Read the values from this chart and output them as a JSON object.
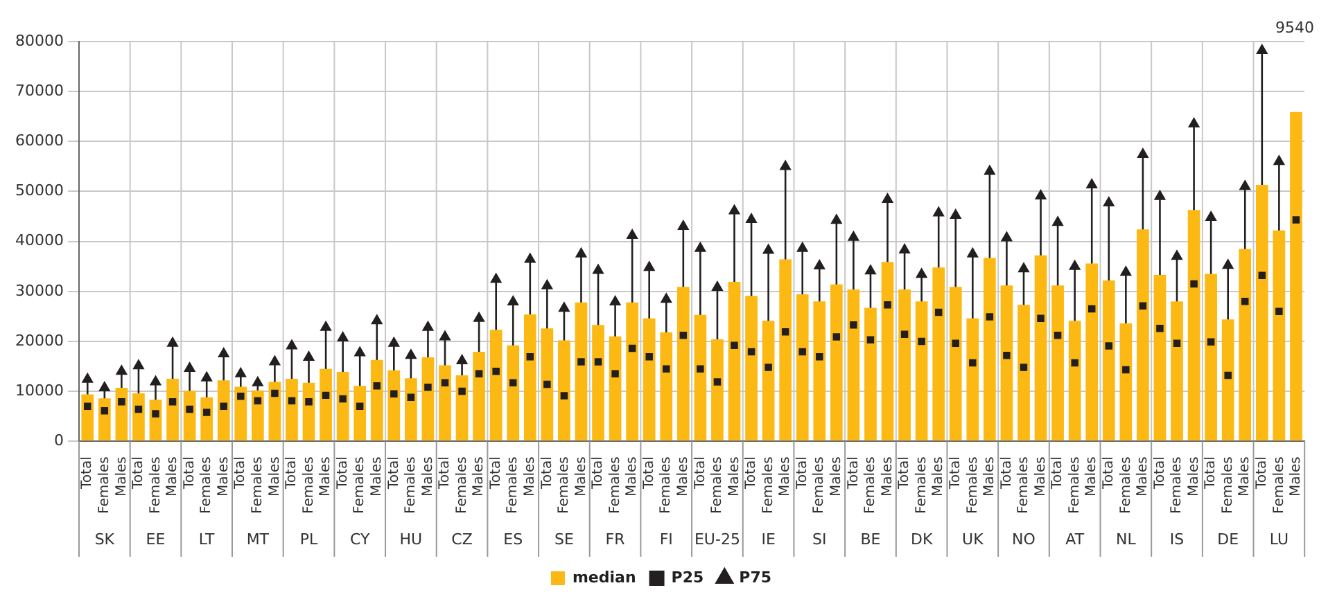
{
  "chart_data": {
    "type": "bar",
    "categories": [
      "Total",
      "Females",
      "Males",
      "Total",
      "Females",
      "Males",
      "Total",
      "Females",
      "Males",
      "Total",
      "Females",
      "Males",
      "Total",
      "Females",
      "Males",
      "Total",
      "Females",
      "Males",
      "Total",
      "Females",
      "Males",
      "Total",
      "Females",
      "Males",
      "Total",
      "Females",
      "Males",
      "Total",
      "Females",
      "Males",
      "Total",
      "Females",
      "Males",
      "Total",
      "Females",
      "Males",
      "Total",
      "Females",
      "Males",
      "Total",
      "Females",
      "Males",
      "Total",
      "Females",
      "Males",
      "Total",
      "Females",
      "Males",
      "Total",
      "Females",
      "Males",
      "Total",
      "Females",
      "Males",
      "Total",
      "Females",
      "Males",
      "Total",
      "Females",
      "Males",
      "Total",
      "Females",
      "Males",
      "Total",
      "Females",
      "Males",
      "Total",
      "Females",
      "Males",
      "Total",
      "Females",
      "Males"
    ],
    "series": [
      {
        "name": "median",
        "color": "#fdb913",
        "values": [
          9400,
          8600,
          10700,
          9600,
          8300,
          12500,
          10100,
          8800,
          12200,
          10900,
          10200,
          11900,
          12500,
          11700,
          14500,
          13900,
          11100,
          16300,
          14200,
          12600,
          16800,
          15200,
          13200,
          17900,
          22300,
          19200,
          25400,
          22600,
          20200,
          27800,
          23300,
          21000,
          27800,
          24600,
          21800,
          30900,
          25300,
          20400,
          31900,
          29100,
          24100,
          36400,
          29400,
          28000,
          31400,
          30400,
          26700,
          35900,
          30400,
          28000,
          34800,
          30900,
          24600,
          36700,
          31200,
          27300,
          37200,
          31200,
          24100,
          35600,
          32200,
          23600,
          42400,
          33300,
          28000,
          46300,
          33500,
          24400,
          38500,
          51300,
          42200,
          65900
        ]
      },
      {
        "name": "P25",
        "type": "scatter",
        "marker": "square",
        "color": "#231f20",
        "values": [
          7000,
          6100,
          7900,
          6400,
          5500,
          7900,
          6400,
          5800,
          7000,
          9000,
          8100,
          9600,
          8100,
          7900,
          9200,
          8500,
          7000,
          11100,
          9500,
          8800,
          10800,
          11700,
          10000,
          13500,
          14000,
          11700,
          16900,
          11400,
          9100,
          15900,
          15900,
          13500,
          18600,
          16900,
          14500,
          21200,
          14500,
          11900,
          19200,
          17900,
          14800,
          21900,
          17900,
          16900,
          20900,
          23300,
          20300,
          27300,
          21400,
          20000,
          25800,
          19600,
          15700,
          24900,
          17200,
          14800,
          24600,
          21200,
          15700,
          26500,
          19100,
          14300,
          27100,
          22600,
          19600,
          31500,
          19900,
          13200,
          28000,
          33200,
          26000,
          44300
        ]
      },
      {
        "name": "P75",
        "type": "scatter",
        "marker": "triangle",
        "color": "#231f20",
        "values": [
          12400,
          10700,
          14000,
          15100,
          11900,
          19600,
          14600,
          12700,
          17500,
          13500,
          11700,
          15900,
          19100,
          16800,
          22800,
          20700,
          17700,
          24100,
          19600,
          17200,
          22800,
          20900,
          16100,
          24600,
          32400,
          27900,
          36400,
          31100,
          26600,
          37500,
          34200,
          27900,
          41200,
          34800,
          28400,
          43000,
          38600,
          30800,
          46100,
          44400,
          38200,
          55000,
          38600,
          35100,
          44200,
          40800,
          34100,
          48400,
          38300,
          33400,
          45700,
          45200,
          37500,
          54000,
          40700,
          34500,
          49100,
          43800,
          35000,
          51300,
          47700,
          33800,
          57400,
          49000,
          37000,
          63500,
          44800,
          35200,
          51000,
          78200,
          56000,
          null
        ]
      }
    ],
    "annotations": [
      "SK",
      "EE",
      "LT",
      "MT",
      "PL",
      "CY",
      "HU",
      "CZ",
      "ES",
      "SE",
      "FR",
      "FI",
      "EU-25",
      "IE",
      "SI",
      "BE",
      "DK",
      "UK",
      "NO",
      "AT",
      "NL",
      "IS",
      "DE",
      "LU",
      "9540"
    ],
    "ylim": [
      0,
      80000
    ],
    "yticks": [
      0,
      10000,
      20000,
      30000,
      40000,
      50000,
      60000,
      70000,
      80000
    ],
    "grid": true,
    "legend": "bottom"
  }
}
